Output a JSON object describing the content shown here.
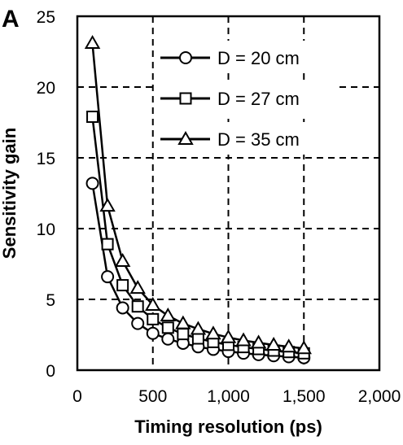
{
  "chart_data": {
    "type": "line",
    "panel_label": "A",
    "xlabel": "Timing resolution (ps)",
    "ylabel": "Sensitivity gain",
    "xlim": [
      0,
      2000
    ],
    "ylim": [
      0,
      25
    ],
    "x_ticks": [
      0,
      500,
      1000,
      1500,
      2000
    ],
    "x_tick_labels": [
      "0",
      "500",
      "1,000",
      "1,500",
      "2,000"
    ],
    "y_ticks": [
      0,
      5,
      10,
      15,
      20,
      25
    ],
    "y_tick_labels": [
      "0",
      "5",
      "10",
      "15",
      "20",
      "25"
    ],
    "grid": true,
    "legend_position": "top-right",
    "x": [
      100,
      200,
      300,
      400,
      500,
      600,
      700,
      800,
      900,
      1000,
      1100,
      1200,
      1300,
      1400,
      1500
    ],
    "series": [
      {
        "name": "D = 20 cm",
        "marker": "circle",
        "values": [
          13.2,
          6.6,
          4.4,
          3.3,
          2.6,
          2.2,
          1.9,
          1.65,
          1.47,
          1.32,
          1.2,
          1.1,
          1.02,
          0.95,
          0.88
        ]
      },
      {
        "name": "D = 27 cm",
        "marker": "square",
        "values": [
          17.9,
          8.9,
          6.0,
          4.5,
          3.6,
          3.0,
          2.55,
          2.24,
          1.99,
          1.79,
          1.63,
          1.49,
          1.38,
          1.28,
          1.19
        ]
      },
      {
        "name": "D = 35 cm",
        "marker": "triangle",
        "values": [
          23.1,
          11.6,
          7.7,
          5.8,
          4.6,
          3.85,
          3.3,
          2.9,
          2.57,
          2.31,
          2.1,
          1.93,
          1.78,
          1.65,
          1.54
        ]
      }
    ]
  }
}
